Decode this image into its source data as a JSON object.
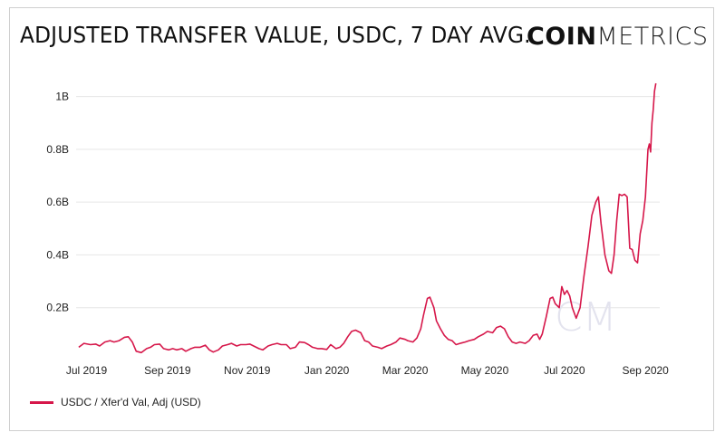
{
  "header": {
    "title": "ADJUSTED TRANSFER VALUE, USDC, 7 DAY AVG.",
    "logo_bold": "COIN",
    "logo_light": "METRICS"
  },
  "colors": {
    "series": "#d6174a",
    "grid": "#e6e6e6",
    "watermark": "#e3e3ee"
  },
  "watermark": "CM",
  "chart_data": {
    "type": "line",
    "title": "ADJUSTED TRANSFER VALUE, USDC, 7 DAY AVG.",
    "ylim": [
      0,
      1.05
    ],
    "y_unit": "B",
    "y_ticks": [
      0.2,
      0.4,
      0.6,
      0.8,
      1.0
    ],
    "y_tick_labels": [
      "0.2B",
      "0.4B",
      "0.6B",
      "0.8B",
      "1B"
    ],
    "x_tick_labels": [
      "Jul 2019",
      "Sep 2019",
      "Nov 2019",
      "Jan 2020",
      "Mar 2020",
      "May 2020",
      "Jul 2020",
      "Sep 2020"
    ],
    "x_tick_dates": [
      "2019-07-01",
      "2019-09-01",
      "2019-11-01",
      "2020-01-01",
      "2020-03-01",
      "2020-05-01",
      "2020-07-01",
      "2020-09-01"
    ],
    "grid": true,
    "legend_position": "bottom-left",
    "series": [
      {
        "name": "USDC / Xfer'd Val, Adj (USD)",
        "points": [
          [
            "2019-06-25",
            0.05
          ],
          [
            "2019-06-29",
            0.065
          ],
          [
            "2019-07-04",
            0.06
          ],
          [
            "2019-07-08",
            0.062
          ],
          [
            "2019-07-11",
            0.055
          ],
          [
            "2019-07-15",
            0.07
          ],
          [
            "2019-07-19",
            0.075
          ],
          [
            "2019-07-22",
            0.07
          ],
          [
            "2019-07-26",
            0.075
          ],
          [
            "2019-07-30",
            0.088
          ],
          [
            "2019-08-02",
            0.09
          ],
          [
            "2019-08-05",
            0.07
          ],
          [
            "2019-08-08",
            0.035
          ],
          [
            "2019-08-12",
            0.03
          ],
          [
            "2019-08-16",
            0.045
          ],
          [
            "2019-08-19",
            0.05
          ],
          [
            "2019-08-22",
            0.06
          ],
          [
            "2019-08-26",
            0.062
          ],
          [
            "2019-08-29",
            0.045
          ],
          [
            "2019-09-02",
            0.04
          ],
          [
            "2019-09-05",
            0.045
          ],
          [
            "2019-09-08",
            0.04
          ],
          [
            "2019-09-12",
            0.045
          ],
          [
            "2019-09-15",
            0.035
          ],
          [
            "2019-09-19",
            0.045
          ],
          [
            "2019-09-22",
            0.05
          ],
          [
            "2019-09-26",
            0.05
          ],
          [
            "2019-09-30",
            0.058
          ],
          [
            "2019-10-03",
            0.04
          ],
          [
            "2019-10-06",
            0.032
          ],
          [
            "2019-10-10",
            0.04
          ],
          [
            "2019-10-13",
            0.055
          ],
          [
            "2019-10-17",
            0.06
          ],
          [
            "2019-10-20",
            0.065
          ],
          [
            "2019-10-24",
            0.055
          ],
          [
            "2019-10-27",
            0.06
          ],
          [
            "2019-10-31",
            0.06
          ],
          [
            "2019-11-03",
            0.062
          ],
          [
            "2019-11-06",
            0.055
          ],
          [
            "2019-11-10",
            0.045
          ],
          [
            "2019-11-13",
            0.04
          ],
          [
            "2019-11-17",
            0.055
          ],
          [
            "2019-11-20",
            0.06
          ],
          [
            "2019-11-24",
            0.065
          ],
          [
            "2019-11-27",
            0.06
          ],
          [
            "2019-12-01",
            0.06
          ],
          [
            "2019-12-04",
            0.045
          ],
          [
            "2019-12-08",
            0.05
          ],
          [
            "2019-12-11",
            0.07
          ],
          [
            "2019-12-15",
            0.068
          ],
          [
            "2019-12-18",
            0.06
          ],
          [
            "2019-12-21",
            0.05
          ],
          [
            "2019-12-25",
            0.045
          ],
          [
            "2019-12-28",
            0.045
          ],
          [
            "2020-01-01",
            0.042
          ],
          [
            "2020-01-04",
            0.06
          ],
          [
            "2020-01-08",
            0.045
          ],
          [
            "2020-01-11",
            0.05
          ],
          [
            "2020-01-14",
            0.065
          ],
          [
            "2020-01-17",
            0.09
          ],
          [
            "2020-01-20",
            0.11
          ],
          [
            "2020-01-23",
            0.115
          ],
          [
            "2020-01-27",
            0.105
          ],
          [
            "2020-01-30",
            0.075
          ],
          [
            "2020-02-02",
            0.07
          ],
          [
            "2020-02-05",
            0.055
          ],
          [
            "2020-02-09",
            0.05
          ],
          [
            "2020-02-12",
            0.045
          ],
          [
            "2020-02-16",
            0.055
          ],
          [
            "2020-02-19",
            0.06
          ],
          [
            "2020-02-23",
            0.07
          ],
          [
            "2020-02-26",
            0.085
          ],
          [
            "2020-03-01",
            0.08
          ],
          [
            "2020-03-03",
            0.075
          ],
          [
            "2020-03-07",
            0.07
          ],
          [
            "2020-03-10",
            0.085
          ],
          [
            "2020-03-13",
            0.12
          ],
          [
            "2020-03-15",
            0.17
          ],
          [
            "2020-03-18",
            0.235
          ],
          [
            "2020-03-20",
            0.24
          ],
          [
            "2020-03-23",
            0.2
          ],
          [
            "2020-03-25",
            0.15
          ],
          [
            "2020-03-28",
            0.12
          ],
          [
            "2020-03-31",
            0.095
          ],
          [
            "2020-04-03",
            0.08
          ],
          [
            "2020-04-06",
            0.075
          ],
          [
            "2020-04-09",
            0.06
          ],
          [
            "2020-04-12",
            0.065
          ],
          [
            "2020-04-16",
            0.07
          ],
          [
            "2020-04-19",
            0.075
          ],
          [
            "2020-04-23",
            0.08
          ],
          [
            "2020-04-26",
            0.09
          ],
          [
            "2020-04-30",
            0.1
          ],
          [
            "2020-05-03",
            0.11
          ],
          [
            "2020-05-07",
            0.105
          ],
          [
            "2020-05-10",
            0.125
          ],
          [
            "2020-05-13",
            0.13
          ],
          [
            "2020-05-16",
            0.12
          ],
          [
            "2020-05-19",
            0.09
          ],
          [
            "2020-05-22",
            0.07
          ],
          [
            "2020-05-25",
            0.065
          ],
          [
            "2020-05-28",
            0.07
          ],
          [
            "2020-06-01",
            0.065
          ],
          [
            "2020-06-04",
            0.075
          ],
          [
            "2020-06-07",
            0.095
          ],
          [
            "2020-06-10",
            0.1
          ],
          [
            "2020-06-12",
            0.08
          ],
          [
            "2020-06-14",
            0.1
          ],
          [
            "2020-06-17",
            0.165
          ],
          [
            "2020-06-20",
            0.235
          ],
          [
            "2020-06-22",
            0.24
          ],
          [
            "2020-06-24",
            0.215
          ],
          [
            "2020-06-27",
            0.2
          ],
          [
            "2020-06-29",
            0.28
          ],
          [
            "2020-07-01",
            0.25
          ],
          [
            "2020-07-03",
            0.265
          ],
          [
            "2020-07-05",
            0.245
          ],
          [
            "2020-07-07",
            0.2
          ],
          [
            "2020-07-10",
            0.16
          ],
          [
            "2020-07-13",
            0.2
          ],
          [
            "2020-07-16",
            0.32
          ],
          [
            "2020-07-19",
            0.43
          ],
          [
            "2020-07-22",
            0.55
          ],
          [
            "2020-07-25",
            0.6
          ],
          [
            "2020-07-27",
            0.62
          ],
          [
            "2020-07-29",
            0.52
          ],
          [
            "2020-08-01",
            0.4
          ],
          [
            "2020-08-04",
            0.34
          ],
          [
            "2020-08-06",
            0.33
          ],
          [
            "2020-08-08",
            0.4
          ],
          [
            "2020-08-10",
            0.53
          ],
          [
            "2020-08-12",
            0.63
          ],
          [
            "2020-08-14",
            0.625
          ],
          [
            "2020-08-16",
            0.63
          ],
          [
            "2020-08-18",
            0.62
          ],
          [
            "2020-08-20",
            0.425
          ],
          [
            "2020-08-22",
            0.42
          ],
          [
            "2020-08-24",
            0.38
          ],
          [
            "2020-08-26",
            0.37
          ],
          [
            "2020-08-28",
            0.48
          ],
          [
            "2020-08-30",
            0.53
          ],
          [
            "2020-09-01",
            0.62
          ],
          [
            "2020-09-03",
            0.8
          ],
          [
            "2020-09-04",
            0.82
          ],
          [
            "2020-09-05",
            0.79
          ],
          [
            "2020-09-06",
            0.9
          ],
          [
            "2020-09-07",
            0.95
          ],
          [
            "2020-09-08",
            1.02
          ],
          [
            "2020-09-09",
            1.05
          ]
        ]
      }
    ]
  },
  "legend": {
    "label": "USDC / Xfer'd Val, Adj (USD)"
  }
}
